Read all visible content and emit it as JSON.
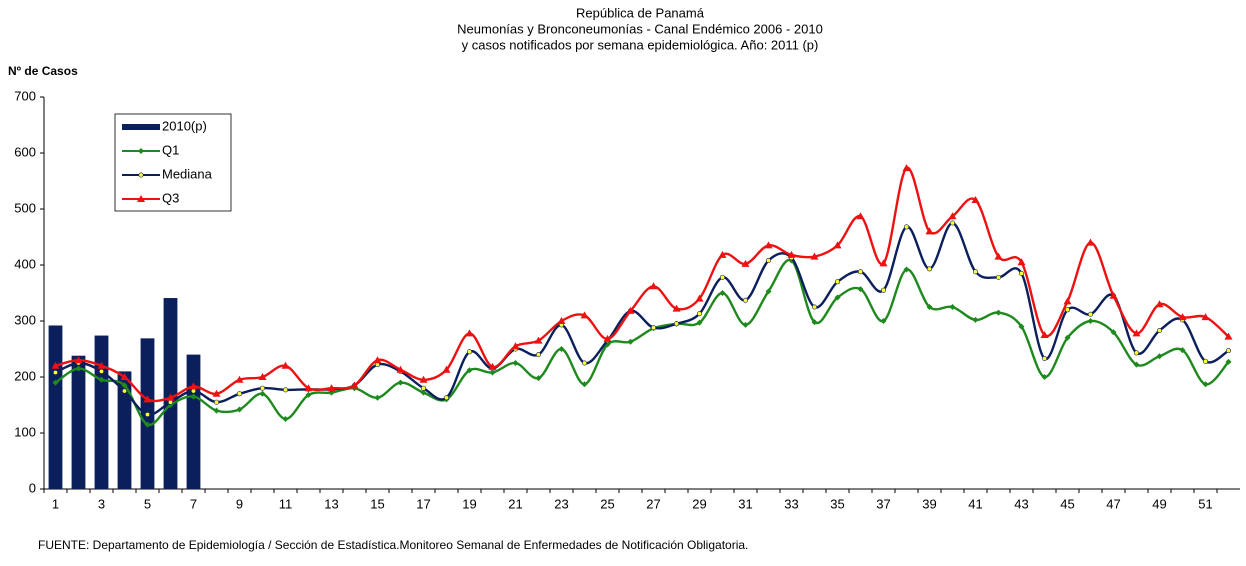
{
  "chart_data": {
    "type": "bar-line",
    "title": [
      "República de Panamá",
      "Neumonías y Bronconeumonías - Canal Endémico 2006  -  2010",
      "y casos notificados por semana epidemiológica. Año: 2011 (p)"
    ],
    "y_label": "Nº de Casos",
    "source": "FUENTE:  Departamento de Epidemiología / Sección de Estadística.Monitoreo Semanal de Enfermedades de Notificación Obligatoria.",
    "categories": [
      1,
      null,
      3,
      null,
      5,
      null,
      7,
      null,
      9,
      null,
      11,
      null,
      13,
      null,
      15,
      null,
      17,
      null,
      19,
      null,
      21,
      null,
      23,
      null,
      25,
      null,
      27,
      null,
      29,
      null,
      31,
      null,
      33,
      null,
      35,
      null,
      37,
      null,
      39,
      null,
      41,
      null,
      43,
      null,
      45,
      null,
      47,
      null,
      49,
      null,
      51,
      null
    ],
    "series": [
      {
        "name": "2010(p)",
        "type": "bar",
        "color": "#0b1f5c",
        "values": [
          292,
          238,
          274,
          210,
          269,
          341,
          240,
          null,
          null,
          null,
          null,
          null,
          null,
          null,
          null,
          null,
          null,
          null,
          null,
          null,
          null,
          null,
          null,
          null,
          null,
          null,
          null,
          null,
          null,
          null,
          null,
          null,
          null,
          null,
          null,
          null,
          null,
          null,
          null,
          null,
          null,
          null,
          null,
          null,
          null,
          null,
          null,
          null,
          null,
          null,
          null,
          null
        ]
      },
      {
        "name": "Q1",
        "type": "line",
        "color": "#1e8a1e",
        "marker": "diamond",
        "values": [
          190,
          215,
          195,
          185,
          115,
          150,
          165,
          140,
          142,
          170,
          125,
          168,
          172,
          180,
          163,
          190,
          172,
          160,
          212,
          208,
          225,
          198,
          250,
          187,
          258,
          263,
          287,
          295,
          297,
          350,
          293,
          353,
          408,
          298,
          342,
          357,
          300,
          392,
          325,
          325,
          302,
          315,
          290,
          200,
          270,
          300,
          280,
          222,
          237,
          248,
          187,
          227
        ]
      },
      {
        "name": "Mediana",
        "type": "line",
        "color": "#0b1f5c",
        "marker": "dot",
        "values": [
          208,
          225,
          210,
          175,
          133,
          155,
          175,
          155,
          170,
          180,
          177,
          178,
          178,
          185,
          222,
          210,
          180,
          163,
          245,
          215,
          250,
          240,
          293,
          225,
          265,
          318,
          288,
          295,
          313,
          378,
          337,
          408,
          413,
          325,
          370,
          388,
          355,
          468,
          393,
          475,
          388,
          378,
          385,
          233,
          320,
          312,
          345,
          243,
          283,
          302,
          228,
          247
        ]
      },
      {
        "name": "Q3",
        "type": "line",
        "color": "#ee1111",
        "marker": "triangle",
        "values": [
          220,
          230,
          220,
          200,
          160,
          163,
          183,
          170,
          195,
          200,
          220,
          180,
          180,
          185,
          230,
          213,
          195,
          213,
          278,
          218,
          255,
          265,
          300,
          310,
          268,
          318,
          362,
          322,
          340,
          418,
          402,
          435,
          418,
          415,
          435,
          487,
          403,
          573,
          460,
          487,
          516,
          415,
          405,
          275,
          335,
          440,
          345,
          278,
          330,
          307,
          307,
          272
        ]
      }
    ],
    "ylim": [
      0,
      700
    ],
    "yticks": [
      0,
      100,
      200,
      300,
      400,
      500,
      600,
      700
    ],
    "grid": false
  }
}
